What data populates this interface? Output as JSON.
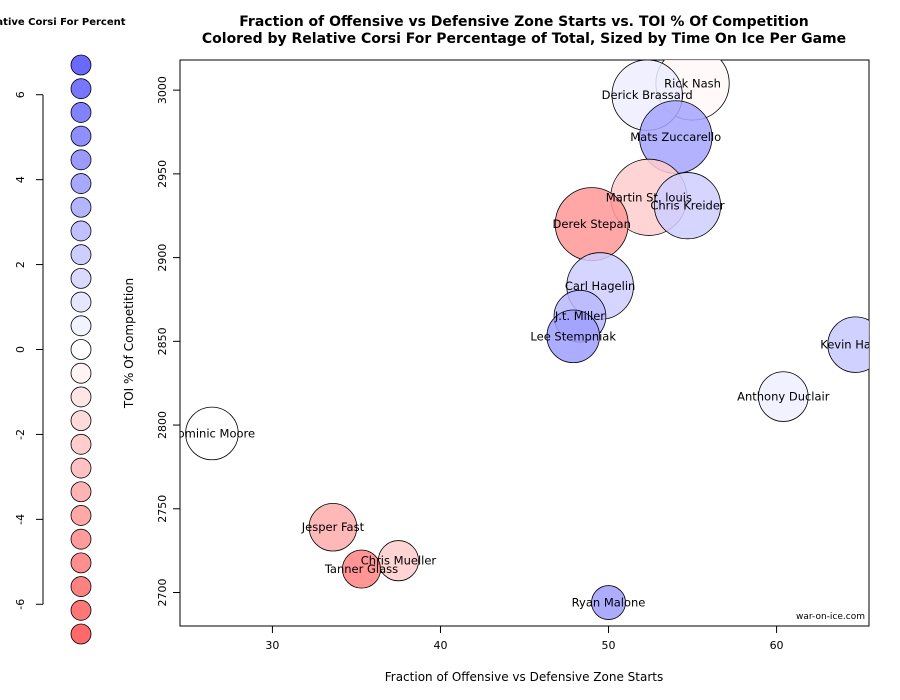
{
  "chart_data": {
    "type": "scatter",
    "title": "Fraction of Offensive vs Defensive Zone Starts vs. TOI % Of Competition",
    "subtitle": "Colored by Relative Corsi For Percentage of Total, Sized by Time On Ice Per Game",
    "xlabel": "Fraction of Offensive vs Defensive Zone Starts",
    "ylabel": "TOI % Of Competition",
    "xlim": [
      24.5,
      65.5
    ],
    "ylim": [
      2680,
      3018
    ],
    "xticks": [
      30,
      40,
      50,
      60
    ],
    "yticks": [
      2700,
      2750,
      2800,
      2850,
      2900,
      2950,
      3000
    ],
    "credit": "war-on-ice.com",
    "points": [
      {
        "name": "Rick Nash",
        "x": 55.0,
        "y": 3004,
        "corsi": -0.3,
        "toi": 18.5
      },
      {
        "name": "Derick Brassard",
        "x": 52.3,
        "y": 2997,
        "corsi": 0.8,
        "toi": 17.8
      },
      {
        "name": "Mats Zuccarello",
        "x": 54.0,
        "y": 2972,
        "corsi": 4.0,
        "toi": 18.3
      },
      {
        "name": "Martin St. louis",
        "x": 52.4,
        "y": 2936,
        "corsi": -2.3,
        "toi": 19.2
      },
      {
        "name": "Chris Kreider",
        "x": 54.7,
        "y": 2931,
        "corsi": 2.2,
        "toi": 16.8
      },
      {
        "name": "Derek Stepan",
        "x": 49.0,
        "y": 2920,
        "corsi": -4.6,
        "toi": 18.4
      },
      {
        "name": "Carl Hagelin",
        "x": 49.5,
        "y": 2883,
        "corsi": 2.2,
        "toi": 16.9
      },
      {
        "name": "J.t. Miller",
        "x": 48.3,
        "y": 2865,
        "corsi": 3.2,
        "toi": 13.3
      },
      {
        "name": "Lee Stempniak",
        "x": 47.9,
        "y": 2853,
        "corsi": 4.3,
        "toi": 13.5
      },
      {
        "name": "Kevin Hayes",
        "x": 64.7,
        "y": 2848,
        "corsi": 2.4,
        "toi": 14.2
      },
      {
        "name": "Anthony Duclair",
        "x": 60.4,
        "y": 2817,
        "corsi": 0.7,
        "toi": 12.8
      },
      {
        "name": "Dominic Moore",
        "x": 26.4,
        "y": 2795,
        "corsi": 0.0,
        "toi": 13.5
      },
      {
        "name": "Jesper Fast",
        "x": 33.6,
        "y": 2739,
        "corsi": -3.7,
        "toi": 12.3
      },
      {
        "name": "Chris Mueller",
        "x": 37.5,
        "y": 2719,
        "corsi": -2.3,
        "toi": 10.5
      },
      {
        "name": "Tanner Glass",
        "x": 35.3,
        "y": 2714,
        "corsi": -5.6,
        "toi": 10.0
      },
      {
        "name": "Ryan Malone",
        "x": 50.0,
        "y": 2694,
        "corsi": 4.3,
        "toi": 9.0
      }
    ],
    "legend": {
      "title": "Relative Corsi For Percent",
      "range": [
        6.7,
        -6.7
      ],
      "ticks": [
        6,
        4,
        2,
        0,
        -2,
        -4,
        -6
      ],
      "steps": 25
    }
  }
}
